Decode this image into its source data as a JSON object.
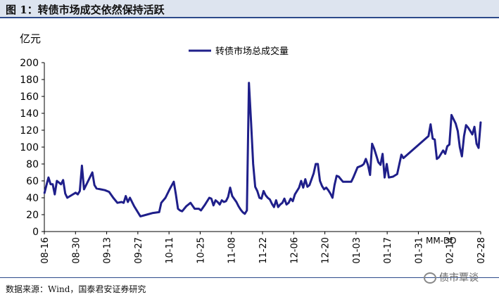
{
  "header": {
    "title": "图 1：转债市场成交依然保持活跃"
  },
  "footer": {
    "source": "数据来源：Wind，国泰君安证券研究",
    "watermark": "债市覃谈"
  },
  "chart_data": {
    "type": "line",
    "title": "",
    "ylabel": "亿元",
    "xlabel": "MM-DD",
    "ylim": [
      0,
      200
    ],
    "yticks": [
      0,
      20,
      40,
      60,
      80,
      100,
      120,
      140,
      160,
      180,
      200
    ],
    "xticks": [
      "08-16",
      "08-30",
      "09-13",
      "09-27",
      "10-11",
      "10-25",
      "11-08",
      "11-22",
      "12-06",
      "12-20",
      "01-03",
      "01-17",
      "01-31",
      "02-14",
      "02-28"
    ],
    "color": "#1f1f8a",
    "series": [
      {
        "name": "转债市场总成交量",
        "points": [
          [
            0,
            45
          ],
          [
            1,
            55
          ],
          [
            2,
            64
          ],
          [
            3,
            56
          ],
          [
            4,
            56
          ],
          [
            5,
            44
          ],
          [
            6,
            60
          ],
          [
            7,
            58
          ],
          [
            8,
            56
          ],
          [
            9,
            61
          ],
          [
            10,
            45
          ],
          [
            11,
            40
          ],
          [
            13,
            43
          ],
          [
            15,
            46
          ],
          [
            16,
            44
          ],
          [
            17,
            48
          ],
          [
            18,
            78
          ],
          [
            19,
            50
          ],
          [
            21,
            60
          ],
          [
            23,
            70
          ],
          [
            24,
            55
          ],
          [
            25,
            51
          ],
          [
            27,
            50
          ],
          [
            29,
            49
          ],
          [
            31,
            47
          ],
          [
            33,
            40
          ],
          [
            35,
            34
          ],
          [
            37,
            35
          ],
          [
            38,
            34
          ],
          [
            39,
            42
          ],
          [
            40,
            35
          ],
          [
            41,
            40
          ],
          [
            43,
            30
          ],
          [
            46,
            18
          ],
          [
            49,
            20
          ],
          [
            52,
            22
          ],
          [
            55,
            23
          ],
          [
            56,
            34
          ],
          [
            58,
            40
          ],
          [
            60,
            50
          ],
          [
            62,
            59
          ],
          [
            63,
            44
          ],
          [
            64,
            27
          ],
          [
            65,
            25
          ],
          [
            66,
            24
          ],
          [
            68,
            30
          ],
          [
            70,
            34
          ],
          [
            72,
            27
          ],
          [
            74,
            27
          ],
          [
            75,
            25
          ],
          [
            77,
            32
          ],
          [
            79,
            40
          ],
          [
            80,
            39
          ],
          [
            81,
            31
          ],
          [
            82,
            37
          ],
          [
            83,
            35
          ],
          [
            84,
            32
          ],
          [
            85,
            37
          ],
          [
            86,
            35
          ],
          [
            87,
            36
          ],
          [
            88,
            41
          ],
          [
            89,
            52
          ],
          [
            90,
            42
          ],
          [
            92,
            35
          ],
          [
            93,
            30
          ],
          [
            94,
            26
          ],
          [
            95,
            23
          ],
          [
            96,
            21
          ],
          [
            97,
            25
          ],
          [
            98,
            176
          ],
          [
            99,
            130
          ],
          [
            100,
            80
          ],
          [
            101,
            53
          ],
          [
            102,
            48
          ],
          [
            103,
            40
          ],
          [
            104,
            39
          ],
          [
            105,
            48
          ],
          [
            106,
            43
          ],
          [
            107,
            40
          ],
          [
            108,
            38
          ],
          [
            109,
            33
          ],
          [
            110,
            29
          ],
          [
            111,
            37
          ],
          [
            112,
            29
          ],
          [
            113,
            32
          ],
          [
            114,
            34
          ],
          [
            115,
            39
          ],
          [
            116,
            32
          ],
          [
            117,
            34
          ],
          [
            118,
            39
          ],
          [
            119,
            36
          ],
          [
            120,
            44
          ],
          [
            122,
            52
          ],
          [
            123,
            60
          ],
          [
            124,
            52
          ],
          [
            125,
            62
          ],
          [
            126,
            53
          ],
          [
            127,
            55
          ],
          [
            128,
            62
          ],
          [
            129,
            69
          ],
          [
            130,
            80
          ],
          [
            131,
            80
          ],
          [
            132,
            60
          ],
          [
            133,
            54
          ],
          [
            134,
            50
          ],
          [
            135,
            52
          ],
          [
            136,
            49
          ],
          [
            137,
            45
          ],
          [
            138,
            40
          ],
          [
            139,
            55
          ],
          [
            140,
            66
          ],
          [
            141,
            65
          ],
          [
            142,
            62
          ],
          [
            143,
            59
          ],
          [
            145,
            59
          ],
          [
            147,
            59
          ],
          [
            148,
            64
          ],
          [
            149,
            70
          ],
          [
            150,
            76
          ],
          [
            152,
            78
          ],
          [
            153,
            80
          ],
          [
            154,
            86
          ],
          [
            155,
            79
          ],
          [
            156,
            67
          ],
          [
            157,
            104
          ],
          [
            158,
            98
          ],
          [
            159,
            90
          ],
          [
            160,
            82
          ],
          [
            161,
            79
          ],
          [
            162,
            92
          ],
          [
            163,
            64
          ],
          [
            164,
            80
          ],
          [
            165,
            64
          ],
          [
            167,
            65
          ],
          [
            169,
            68
          ],
          [
            171,
            91
          ],
          [
            172,
            87
          ],
          [
            184,
            113
          ],
          [
            185,
            127
          ],
          [
            186,
            110
          ],
          [
            187,
            109
          ],
          [
            188,
            86
          ],
          [
            189,
            88
          ],
          [
            190,
            92
          ],
          [
            191,
            96
          ],
          [
            192,
            92
          ],
          [
            193,
            101
          ],
          [
            194,
            103
          ],
          [
            195,
            138
          ],
          [
            196,
            133
          ],
          [
            197,
            128
          ],
          [
            198,
            119
          ],
          [
            199,
            100
          ],
          [
            200,
            89
          ],
          [
            201,
            113
          ],
          [
            202,
            126
          ],
          [
            203,
            123
          ],
          [
            204,
            119
          ],
          [
            205,
            115
          ],
          [
            206,
            124
          ],
          [
            207,
            104
          ],
          [
            208,
            99
          ],
          [
            209,
            130
          ]
        ]
      }
    ]
  }
}
